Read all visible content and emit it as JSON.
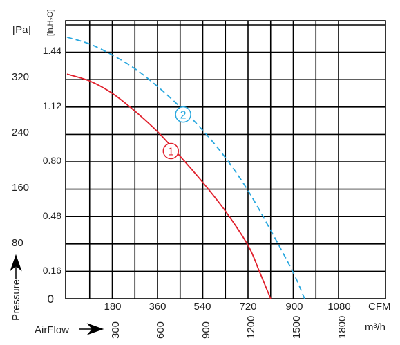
{
  "chart_data": {
    "type": "line",
    "units": {
      "pressure_left": "[Pa]",
      "pressure_right": "[in.H₂O]",
      "flow_cfm": "CFM",
      "flow_m3h": "m³/h"
    },
    "axis_labels": {
      "y": "Pressure",
      "x": "AirFlow"
    },
    "y_ticks_pa": [
      "0",
      "80",
      "160",
      "240",
      "320"
    ],
    "y_ticks_inh2o": [
      "0.16",
      "0.48",
      "0.80",
      "1.12",
      "1.44"
    ],
    "x_ticks_cfm": [
      "180",
      "360",
      "540",
      "720",
      "900",
      "1080"
    ],
    "x_ticks_m3h": [
      "300",
      "600",
      "900",
      "1200",
      "1500",
      "1800"
    ],
    "xlim_cfm": [
      0,
      1170
    ],
    "ylim_pa": [
      0,
      368
    ],
    "grid": true,
    "series": [
      {
        "name": "1",
        "color": "#e0202c",
        "dash": "solid",
        "x_cfm": [
          0,
          90,
          180,
          270,
          360,
          450,
          540,
          630,
          720,
          765,
          810
        ],
        "y_pa": [
          328,
          318,
          300,
          274,
          244,
          208,
          170,
          128,
          78,
          40,
          0
        ]
      },
      {
        "name": "2",
        "color": "#2aa8df",
        "dash": "dashed",
        "x_cfm": [
          0,
          90,
          180,
          270,
          360,
          450,
          540,
          630,
          720,
          810,
          900,
          945
        ],
        "y_pa": [
          382,
          372,
          356,
          336,
          310,
          280,
          246,
          206,
          158,
          100,
          38,
          0
        ]
      }
    ]
  }
}
